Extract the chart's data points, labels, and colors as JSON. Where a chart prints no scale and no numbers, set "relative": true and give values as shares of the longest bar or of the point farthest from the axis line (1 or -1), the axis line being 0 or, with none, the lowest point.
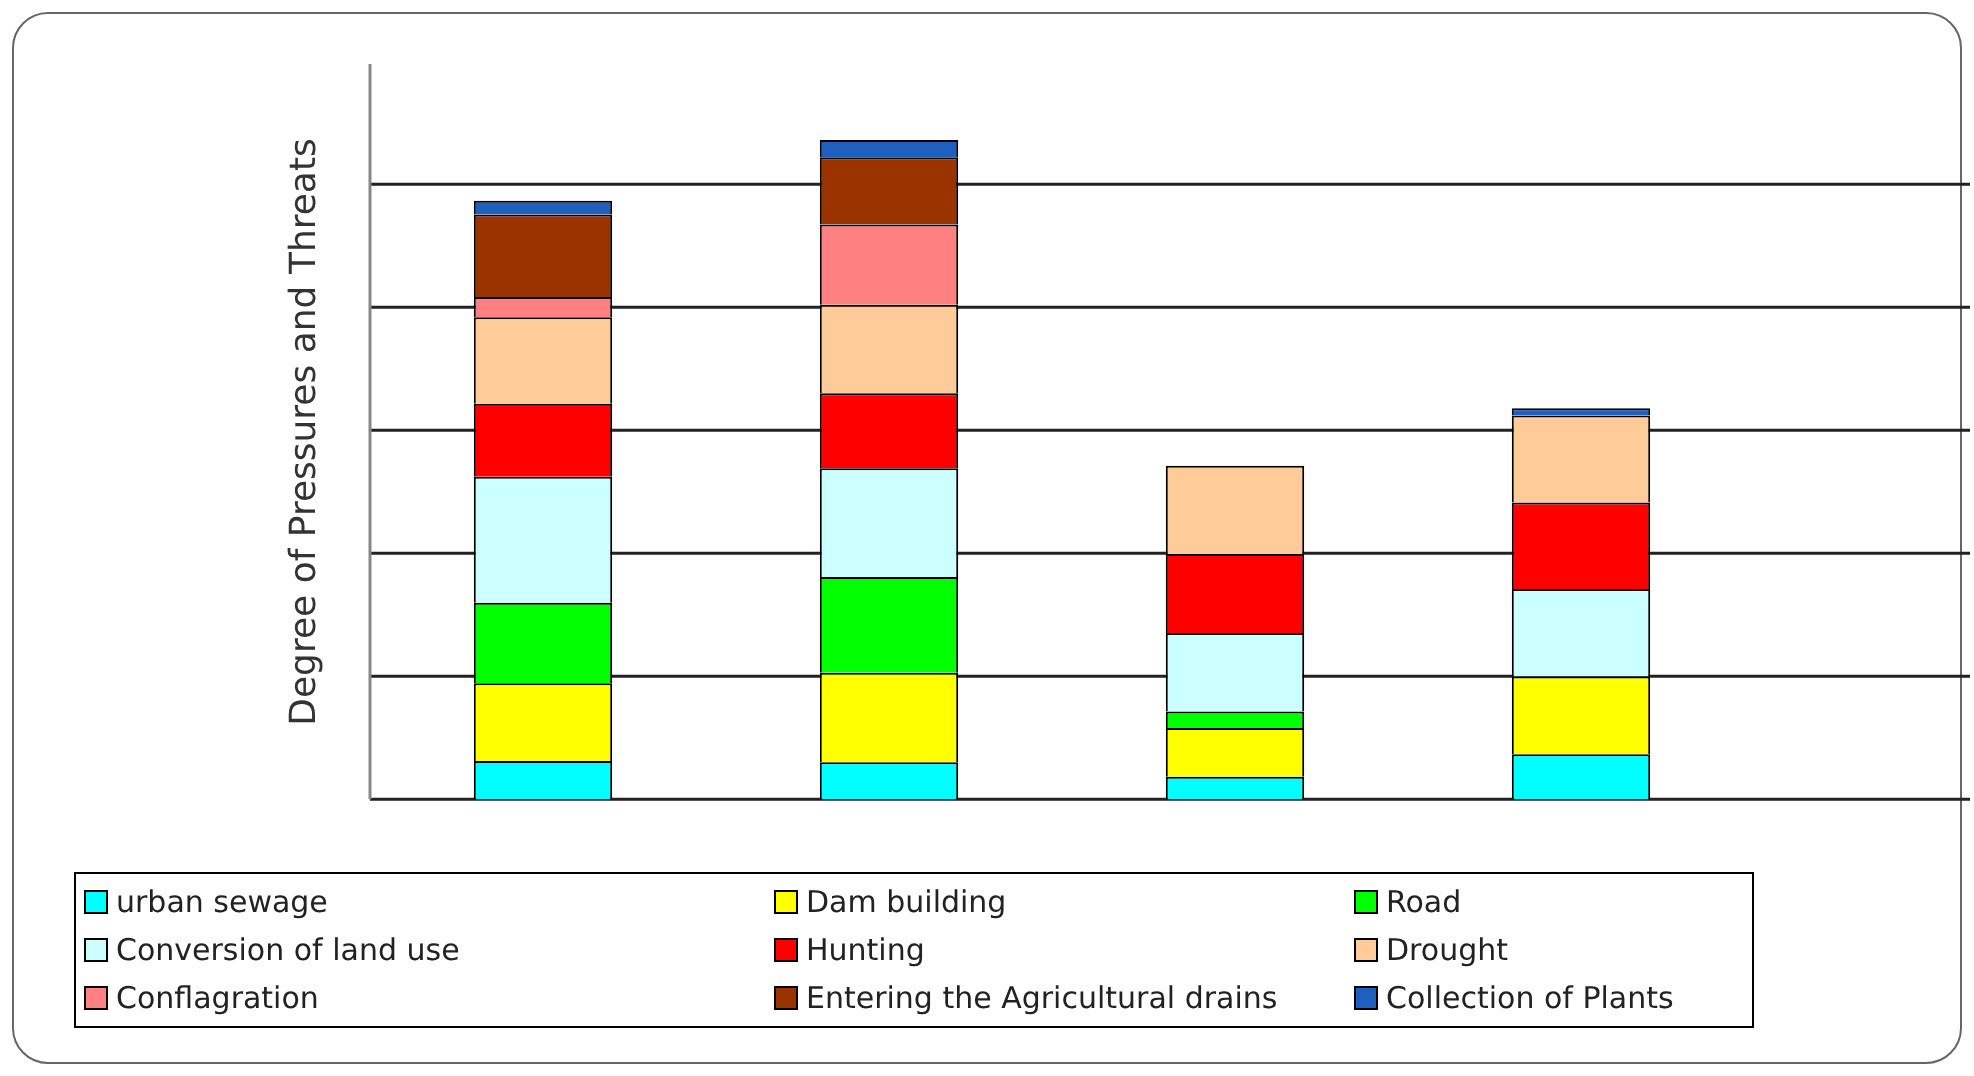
{
  "chart_data": {
    "type": "bar",
    "stacked": true,
    "relative": true,
    "ylabel": "Degree of Pressures and Threats",
    "categories": [
      null,
      null,
      null,
      null
    ],
    "grid": "y",
    "legend": "bottom",
    "series": [
      {
        "name": "urban sewage",
        "color": "#00ffff",
        "values": [
          0.058,
          0.056,
          0.034,
          0.068
        ]
      },
      {
        "name": "Dam building",
        "color": "#ffff00",
        "values": [
          0.118,
          0.136,
          0.074,
          0.118
        ]
      },
      {
        "name": "Road",
        "color": "#00ff00",
        "values": [
          0.122,
          0.145,
          0.025,
          0
        ]
      },
      {
        "name": "Conversion of land use",
        "color": "#ccffff",
        "values": [
          0.191,
          0.165,
          0.119,
          0.133
        ]
      },
      {
        "name": "Hunting",
        "color": "#ff0000",
        "values": [
          0.111,
          0.114,
          0.12,
          0.131
        ]
      },
      {
        "name": "Drought",
        "color": "#ffcc99",
        "values": [
          0.131,
          0.134,
          0.134,
          0.132
        ]
      },
      {
        "name": "Conflagration",
        "color": "#ff8080",
        "values": [
          0.031,
          0.122,
          0,
          0
        ]
      },
      {
        "name": "Entering the Agricultural drains",
        "color": "#993300",
        "values": [
          0.125,
          0.102,
          0,
          0
        ]
      },
      {
        "name": "Collection of Plants",
        "color": "#1f5fbf",
        "values": [
          0.021,
          0.026,
          0,
          0.011
        ]
      }
    ]
  }
}
